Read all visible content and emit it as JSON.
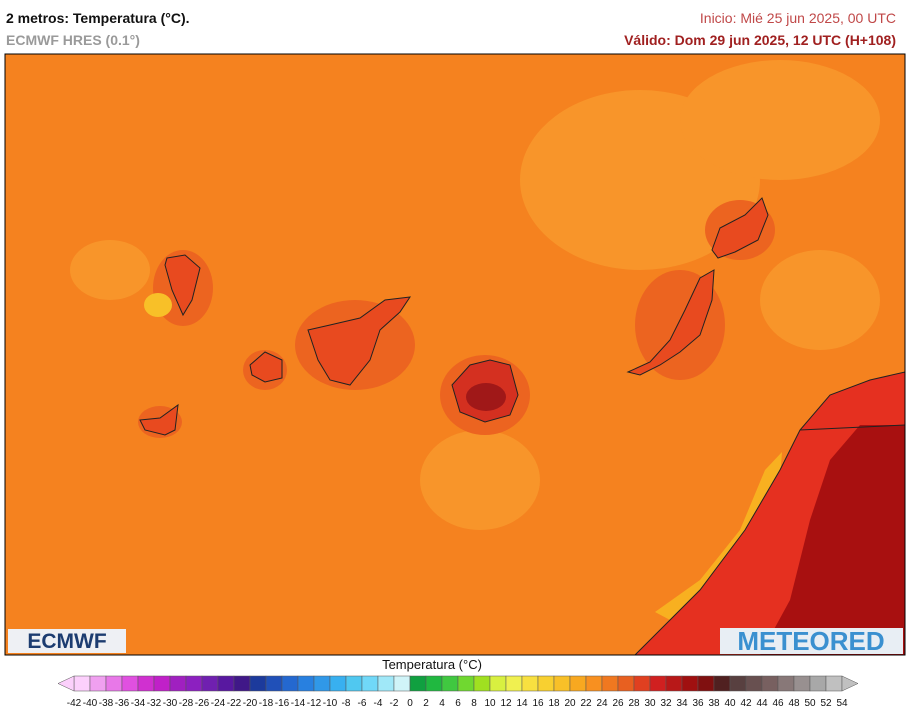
{
  "header": {
    "title": "2 metros: Temperatura (°C).",
    "model": "ECMWF HRES (0.1°)",
    "init": "Inicio: Mié 25 jun 2025, 00 UTC",
    "valid": "Válido: Dom 29 jun 2025, 12 UTC (H+108)"
  },
  "logos": {
    "left": "ECMWF",
    "right": "METEORED"
  },
  "colorbar": {
    "title": "Temperatura (°C)",
    "ticks": [
      -42,
      -40,
      -38,
      -36,
      -34,
      -32,
      -30,
      -28,
      -26,
      -24,
      -22,
      -20,
      -18,
      -16,
      -14,
      -12,
      -10,
      -8,
      -6,
      -4,
      -2,
      0,
      2,
      4,
      6,
      8,
      10,
      12,
      14,
      16,
      18,
      20,
      22,
      24,
      26,
      28,
      30,
      32,
      34,
      36,
      38,
      40,
      42,
      44,
      46,
      48,
      50,
      52,
      54
    ],
    "colors": [
      "#fcd0fc",
      "#f0a0f0",
      "#e878e8",
      "#e050e0",
      "#d030d0",
      "#c020c8",
      "#a020c0",
      "#8c20c0",
      "#7020b0",
      "#5818a0",
      "#401888",
      "#1c3a9c",
      "#2050b8",
      "#2468d0",
      "#2880e0",
      "#3098e8",
      "#38b0f0",
      "#50c8f0",
      "#70d8f8",
      "#a0e8f8",
      "#d0f4f8",
      "#10a040",
      "#20b840",
      "#40c840",
      "#70d830",
      "#a0e020",
      "#d8f040",
      "#f0f050",
      "#f8e040",
      "#f8d030",
      "#f8c028",
      "#f8a820",
      "#f89020",
      "#f07820",
      "#e86020",
      "#e04020",
      "#d02020",
      "#b81818",
      "#a01010",
      "#801010",
      "#502020",
      "#584040",
      "#685050",
      "#786060",
      "#887878",
      "#989090",
      "#a8a8a8",
      "#c0c0c0"
    ]
  }
}
